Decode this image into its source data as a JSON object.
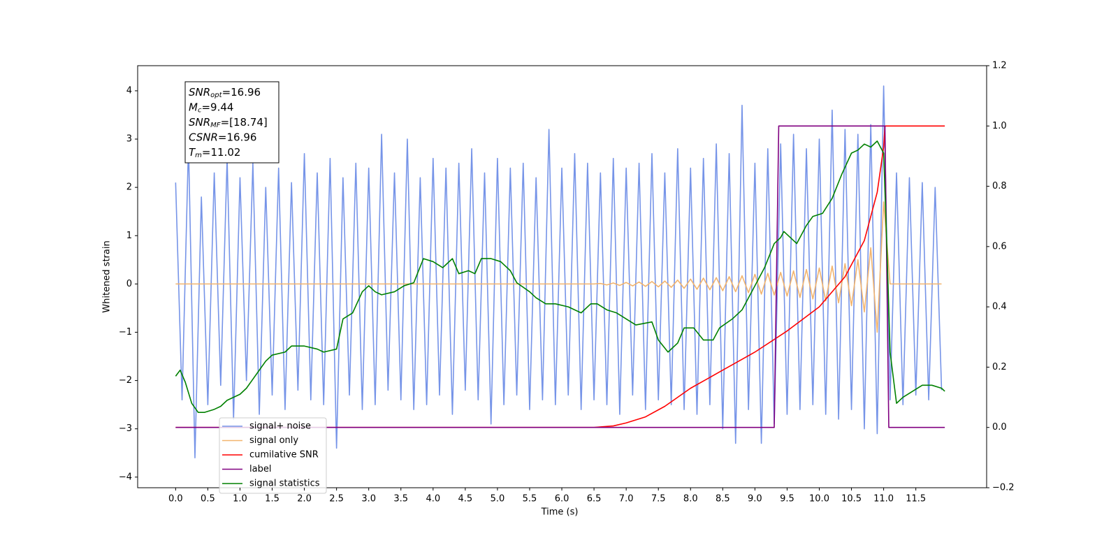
{
  "chart_data": {
    "type": "line",
    "xlabel": "Time (s)",
    "ylabel": "Whitened strain",
    "xlim": [
      -0.59,
      12.6
    ],
    "ylim": [
      -4.22,
      4.52
    ],
    "y2lim": [
      -0.2,
      1.2
    ],
    "xticks": [
      {
        "value": 0,
        "label": "0.0"
      },
      0.5,
      {
        "value": 1,
        "label": "1.0"
      },
      1.5,
      {
        "value": 2,
        "label": "2.0"
      },
      2.5,
      {
        "value": 3,
        "label": "3.0"
      },
      3.5,
      {
        "value": 4,
        "label": "4.0"
      },
      4.5,
      {
        "value": 5,
        "label": "5.0"
      },
      5.5,
      {
        "value": 6,
        "label": "6.0"
      },
      6.5,
      {
        "value": 7,
        "label": "7.0"
      },
      7.5,
      {
        "value": 8,
        "label": "8.0"
      },
      8.5,
      {
        "value": 9,
        "label": "9.0"
      },
      9.5,
      {
        "value": 10,
        "label": "10.0"
      },
      10.5,
      {
        "value": 11,
        "label": "11.0"
      },
      11.5
    ],
    "yticks": [
      {
        "value": -4,
        "label": "−4"
      },
      {
        "value": -3,
        "label": "−3"
      },
      {
        "value": -2,
        "label": "−2"
      },
      {
        "value": -1,
        "label": "−1"
      },
      0,
      1,
      2,
      3,
      4
    ],
    "y2ticks": [
      {
        "value": -0.2,
        "label": "−0.2"
      },
      {
        "value": 0,
        "label": "0.0"
      },
      0.2,
      0.4,
      0.6,
      0.8,
      {
        "value": 1,
        "label": "1.0"
      },
      1.2
    ],
    "legend": "lower left",
    "x": [
      0.0,
      0.1,
      0.2,
      0.3,
      0.4,
      0.5,
      0.6,
      0.7,
      0.8,
      0.9,
      1.0,
      1.1,
      1.2,
      1.3,
      1.4,
      1.5,
      1.6,
      1.7,
      1.8,
      1.9,
      2.0,
      2.1,
      2.2,
      2.3,
      2.4,
      2.5,
      2.6,
      2.7,
      2.8,
      2.9,
      3.0,
      3.1,
      3.2,
      3.3,
      3.4,
      3.5,
      3.6,
      3.7,
      3.8,
      3.9,
      4.0,
      4.1,
      4.2,
      4.3,
      4.4,
      4.5,
      4.6,
      4.7,
      4.8,
      4.9,
      5.0,
      5.1,
      5.2,
      5.3,
      5.4,
      5.5,
      5.6,
      5.7,
      5.8,
      5.9,
      6.0,
      6.1,
      6.2,
      6.3,
      6.4,
      6.5,
      6.6,
      6.7,
      6.8,
      6.9,
      7.0,
      7.1,
      7.2,
      7.3,
      7.4,
      7.5,
      7.6,
      7.7,
      7.8,
      7.9,
      8.0,
      8.1,
      8.2,
      8.3,
      8.4,
      8.5,
      8.6,
      8.7,
      8.8,
      8.9,
      9.0,
      9.1,
      9.2,
      9.3,
      9.4,
      9.5,
      9.6,
      9.7,
      9.8,
      9.9,
      10.0,
      10.1,
      10.2,
      10.3,
      10.4,
      10.5,
      10.6,
      10.7,
      10.8,
      10.9,
      11.0,
      11.1,
      11.2,
      11.3,
      11.4,
      11.5,
      11.6,
      11.7,
      11.8,
      11.9
    ],
    "series": [
      {
        "name": "signal+ noise",
        "color": "#7694e8",
        "values": [
          2.1,
          -2.4,
          2.9,
          -3.6,
          1.8,
          -2.5,
          2.3,
          -2.1,
          2.6,
          -2.8,
          2.2,
          -2.0,
          2.5,
          -2.7,
          2.0,
          -2.3,
          2.4,
          -2.6,
          2.1,
          -2.2,
          2.7,
          -2.4,
          2.3,
          -2.5,
          2.6,
          -3.4,
          2.2,
          -2.3,
          2.5,
          -2.6,
          2.4,
          -2.5,
          3.1,
          -2.2,
          2.3,
          -2.4,
          3.0,
          -2.6,
          2.2,
          -2.5,
          2.6,
          -2.3,
          2.4,
          -2.7,
          2.5,
          -2.2,
          2.8,
          -2.4,
          2.3,
          -2.9,
          2.6,
          -2.5,
          2.4,
          -2.3,
          2.5,
          -2.6,
          2.2,
          -2.4,
          3.2,
          -2.5,
          2.4,
          -2.3,
          2.7,
          -2.6,
          2.5,
          -2.4,
          2.3,
          -2.5,
          2.6,
          -2.7,
          2.4,
          -2.3,
          2.5,
          -2.6,
          2.7,
          -2.4,
          2.3,
          -2.5,
          2.8,
          -2.6,
          2.4,
          -2.7,
          2.6,
          -2.5,
          2.9,
          -3.0,
          2.7,
          -3.3,
          3.7,
          -2.6,
          2.5,
          -3.3,
          2.8,
          -2.9,
          2.9,
          -2.7,
          3.1,
          -2.6,
          2.8,
          -2.5,
          3.0,
          -2.7,
          3.6,
          -2.8,
          3.2,
          -2.6,
          3.1,
          -3.0,
          3.3,
          -3.1,
          4.1,
          -2.4,
          2.3,
          -2.5,
          2.2,
          -2.3,
          2.1,
          -2.4,
          2.0,
          -2.2
        ]
      },
      {
        "name": "signal only",
        "color": "#f2b46e",
        "values": [
          0,
          0,
          0,
          0,
          0,
          0,
          0,
          0,
          0,
          0,
          0,
          0,
          0,
          0,
          0,
          0,
          0,
          0,
          0,
          0,
          0,
          0,
          0,
          0,
          0,
          0,
          0,
          0,
          0,
          0,
          0,
          0,
          0,
          0,
          0,
          0,
          0,
          0,
          0,
          0,
          0,
          0,
          0,
          0,
          0,
          0,
          0,
          0,
          0,
          0,
          0,
          0,
          0,
          0,
          0,
          0,
          0,
          0,
          0,
          0,
          0,
          0,
          0,
          0,
          0,
          0,
          0.01,
          -0.02,
          0.02,
          -0.03,
          0.03,
          -0.04,
          0.04,
          -0.05,
          0.05,
          -0.06,
          0.06,
          -0.07,
          0.08,
          -0.09,
          0.1,
          -0.11,
          0.12,
          -0.12,
          0.13,
          -0.14,
          0.15,
          -0.16,
          0.17,
          -0.18,
          0.2,
          -0.21,
          0.22,
          -0.23,
          0.24,
          -0.25,
          0.27,
          -0.28,
          0.3,
          -0.31,
          0.33,
          -0.35,
          0.37,
          -0.39,
          0.42,
          -0.45,
          0.5,
          -0.58,
          0.75,
          -1.0,
          1.7,
          0,
          0,
          0,
          0,
          0,
          0,
          0,
          0,
          0
        ]
      },
      {
        "name": "cumilative SNR",
        "color": "#ff0000",
        "axis": "y2",
        "x": [
          0,
          6.5,
          6.8,
          7.0,
          7.3,
          7.6,
          8.0,
          8.5,
          9.0,
          9.5,
          10.0,
          10.4,
          10.7,
          10.9,
          11.0,
          11.02,
          11.95
        ],
        "values": [
          0,
          0,
          0.005,
          0.015,
          0.035,
          0.07,
          0.13,
          0.19,
          0.25,
          0.32,
          0.4,
          0.5,
          0.62,
          0.78,
          0.93,
          1.0,
          1.0
        ]
      },
      {
        "name": "label",
        "color": "#800080",
        "axis": "y2",
        "x": [
          0,
          9.3,
          9.37,
          11.02,
          11.08,
          11.95
        ],
        "values": [
          0,
          0,
          1,
          1,
          0,
          0
        ]
      },
      {
        "name": "signal statistics",
        "color": "#008000",
        "axis": "y2",
        "x": [
          0.0,
          0.07,
          0.15,
          0.25,
          0.35,
          0.45,
          0.6,
          0.7,
          0.8,
          1.0,
          1.1,
          1.2,
          1.3,
          1.4,
          1.5,
          1.7,
          1.8,
          2.0,
          2.2,
          2.3,
          2.5,
          2.6,
          2.75,
          2.9,
          3.0,
          3.1,
          3.2,
          3.4,
          3.55,
          3.7,
          3.85,
          4.0,
          4.15,
          4.3,
          4.4,
          4.55,
          4.65,
          4.75,
          4.9,
          5.05,
          5.2,
          5.3,
          5.5,
          5.6,
          5.75,
          5.9,
          6.1,
          6.3,
          6.45,
          6.55,
          6.7,
          6.85,
          7.0,
          7.15,
          7.4,
          7.5,
          7.65,
          7.8,
          7.9,
          8.05,
          8.2,
          8.35,
          8.45,
          8.65,
          8.8,
          9.0,
          9.15,
          9.3,
          9.4,
          9.45,
          9.55,
          9.65,
          9.8,
          9.9,
          10.05,
          10.2,
          10.35,
          10.5,
          10.6,
          10.7,
          10.8,
          10.9,
          11.0,
          11.05,
          11.1,
          11.2,
          11.3,
          11.45,
          11.6,
          11.75,
          11.9,
          11.95
        ],
        "values": [
          0.17,
          0.19,
          0.15,
          0.08,
          0.05,
          0.05,
          0.06,
          0.07,
          0.09,
          0.11,
          0.13,
          0.16,
          0.19,
          0.22,
          0.24,
          0.25,
          0.27,
          0.27,
          0.26,
          0.25,
          0.26,
          0.36,
          0.38,
          0.45,
          0.47,
          0.45,
          0.44,
          0.45,
          0.47,
          0.48,
          0.56,
          0.55,
          0.53,
          0.56,
          0.51,
          0.52,
          0.51,
          0.56,
          0.56,
          0.55,
          0.52,
          0.48,
          0.45,
          0.43,
          0.41,
          0.41,
          0.4,
          0.38,
          0.41,
          0.41,
          0.39,
          0.38,
          0.36,
          0.34,
          0.35,
          0.29,
          0.25,
          0.28,
          0.33,
          0.33,
          0.29,
          0.29,
          0.33,
          0.36,
          0.39,
          0.47,
          0.53,
          0.61,
          0.63,
          0.65,
          0.63,
          0.61,
          0.67,
          0.7,
          0.71,
          0.76,
          0.84,
          0.91,
          0.92,
          0.94,
          0.93,
          0.95,
          0.91,
          0.6,
          0.25,
          0.08,
          0.1,
          0.12,
          0.14,
          0.14,
          0.13,
          0.12
        ]
      }
    ],
    "annotation": [
      {
        "symbol": "SNR",
        "subscript": "opt",
        "text": "=16.96"
      },
      {
        "symbol": "M",
        "subscript": "c",
        "text": "=9.44"
      },
      {
        "symbol": "SNR",
        "subscript": "MF",
        "text": "=[18.74]"
      },
      {
        "symbol": "CSNR",
        "text": "=16.96"
      },
      {
        "symbol": "T",
        "subscript": "m",
        "text": "=11.02"
      }
    ]
  }
}
